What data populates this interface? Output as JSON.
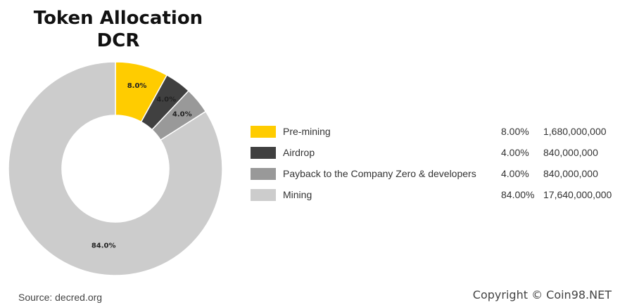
{
  "title_line1": "Token Allocation",
  "title_line2": "DCR",
  "chart_data": {
    "type": "pie",
    "title": "Token Allocation DCR",
    "categories": [
      "Pre-mining",
      "Airdrop",
      "Payback to the Company Zero & developers",
      "Mining"
    ],
    "values": [
      8.0,
      4.0,
      4.0,
      84.0
    ],
    "slice_labels": [
      "8.0%",
      "4.0%",
      "4.0%",
      "84.0%"
    ],
    "percent_labels": [
      "8.00%",
      "4.00%",
      "4.00%",
      "84.00%"
    ],
    "amounts": [
      "1,680,000,000",
      "840,000,000",
      "840,000,000",
      "17,640,000,000"
    ],
    "colors": [
      "#FFCC00",
      "#404040",
      "#999999",
      "#CCCCCC"
    ],
    "donut": true,
    "legend_position": "right"
  },
  "source": "Source: decred.org",
  "copyright": "Copyright © Coin98.NET"
}
